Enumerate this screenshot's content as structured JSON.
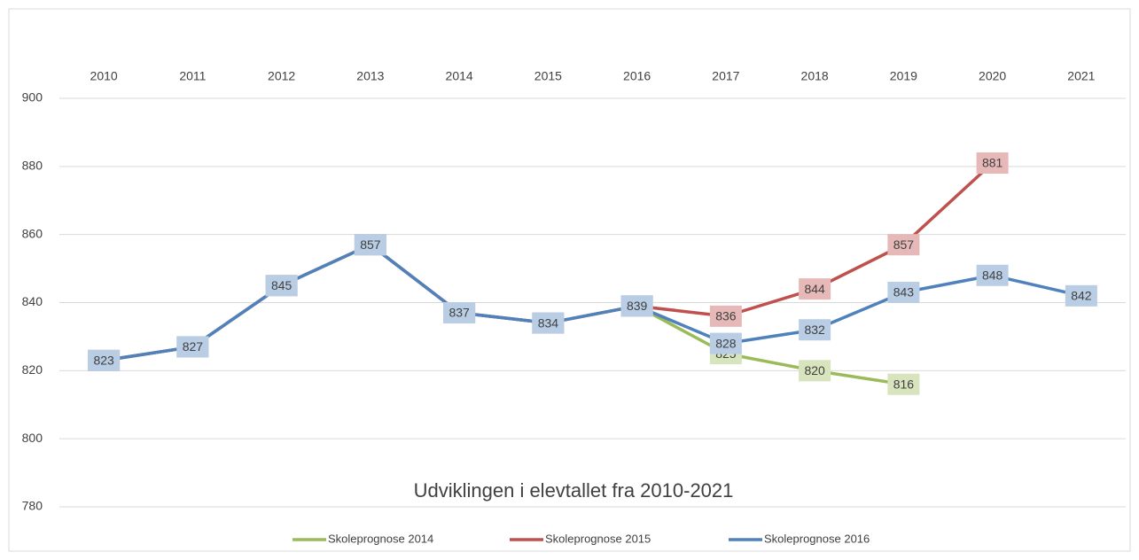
{
  "chart_data": {
    "type": "line",
    "title": "Udviklingen i elevtallet fra 2010-2021",
    "categories": [
      "2010",
      "2011",
      "2012",
      "2013",
      "2014",
      "2015",
      "2016",
      "2017",
      "2018",
      "2019",
      "2020",
      "2021"
    ],
    "series": [
      {
        "name": "Skoleprognose 2014",
        "color": "#9bbb59",
        "label_color": "#d7e4bd",
        "values": [
          823,
          827,
          845,
          857,
          837,
          834,
          839,
          825,
          820,
          816,
          null,
          null
        ]
      },
      {
        "name": "Skoleprognose 2015",
        "color": "#c0504d",
        "label_color": "#e6b9b8",
        "values": [
          823,
          827,
          845,
          857,
          837,
          834,
          839,
          836,
          844,
          857,
          881,
          null
        ]
      },
      {
        "name": "Skoleprognose 2016",
        "color": "#4f81bd",
        "label_color": "#b9cde5",
        "values": [
          823,
          827,
          845,
          857,
          837,
          834,
          839,
          828,
          832,
          843,
          848,
          842
        ]
      }
    ],
    "ylim": [
      780,
      900
    ],
    "yticks": [
      780,
      800,
      820,
      840,
      860,
      880,
      900
    ],
    "grid": true,
    "legend": "bottom"
  }
}
